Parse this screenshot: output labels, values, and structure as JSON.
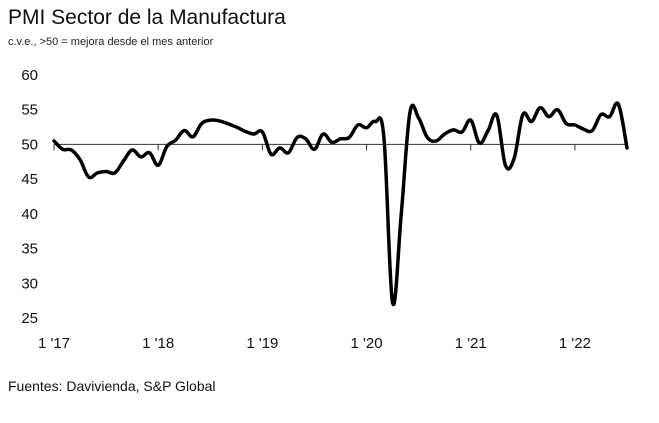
{
  "chart_data": {
    "type": "line",
    "title": "PMI Sector de la Manufactura",
    "subtitle": "c.v.e., >50 = mejora desde el mes anterior",
    "source": "Fuentes: Davivienda, S&P Global",
    "xlabel": "",
    "ylabel": "",
    "ylim": [
      25,
      60
    ],
    "yticks": [
      25,
      30,
      35,
      40,
      45,
      50,
      55,
      60
    ],
    "reference_line": 50,
    "x_tick_labels": [
      "1 '17",
      "1 '18",
      "1 '19",
      "1 '20",
      "1 '21",
      "1 '22"
    ],
    "x_start": "2017-01",
    "x_end": "2022-07",
    "series": [
      {
        "name": "PMI Sector de la Manufactura",
        "color": "#000000",
        "x": [
          "2017-01",
          "2017-02",
          "2017-03",
          "2017-04",
          "2017-05",
          "2017-06",
          "2017-07",
          "2017-08",
          "2017-09",
          "2017-10",
          "2017-11",
          "2017-12",
          "2018-01",
          "2018-02",
          "2018-03",
          "2018-04",
          "2018-05",
          "2018-06",
          "2018-07",
          "2018-08",
          "2018-09",
          "2018-10",
          "2018-11",
          "2018-12",
          "2019-01",
          "2019-02",
          "2019-03",
          "2019-04",
          "2019-05",
          "2019-06",
          "2019-07",
          "2019-08",
          "2019-09",
          "2019-10",
          "2019-11",
          "2019-12",
          "2020-01",
          "2020-02",
          "2020-03",
          "2020-04",
          "2020-05",
          "2020-06",
          "2020-07",
          "2020-08",
          "2020-09",
          "2020-10",
          "2020-11",
          "2020-12",
          "2021-01",
          "2021-02",
          "2021-03",
          "2021-04",
          "2021-05",
          "2021-06",
          "2021-07",
          "2021-08",
          "2021-09",
          "2021-10",
          "2021-11",
          "2021-12",
          "2022-01",
          "2022-02",
          "2022-03",
          "2022-04",
          "2022-05",
          "2022-06",
          "2022-07"
        ],
        "values": [
          50.5,
          49.3,
          49.2,
          47.8,
          45.3,
          45.9,
          46.1,
          45.9,
          47.6,
          49.2,
          48.2,
          48.8,
          47.0,
          49.7,
          50.6,
          52.0,
          51.1,
          53.0,
          53.5,
          53.4,
          53.0,
          52.5,
          51.9,
          51.5,
          51.8,
          48.6,
          49.5,
          48.8,
          51.0,
          50.8,
          49.3,
          51.5,
          50.3,
          50.8,
          51.0,
          52.8,
          52.4,
          53.3,
          51.0,
          27.2,
          40.0,
          54.6,
          53.8,
          51.0,
          50.5,
          51.5,
          52.1,
          51.8,
          53.5,
          50.2,
          52.0,
          54.2,
          47.0,
          48.0,
          54.3,
          53.3,
          55.3,
          54.0,
          55.0,
          53.0,
          52.8,
          52.2,
          52.0,
          54.3,
          54.0,
          55.8,
          49.5
        ]
      }
    ]
  }
}
